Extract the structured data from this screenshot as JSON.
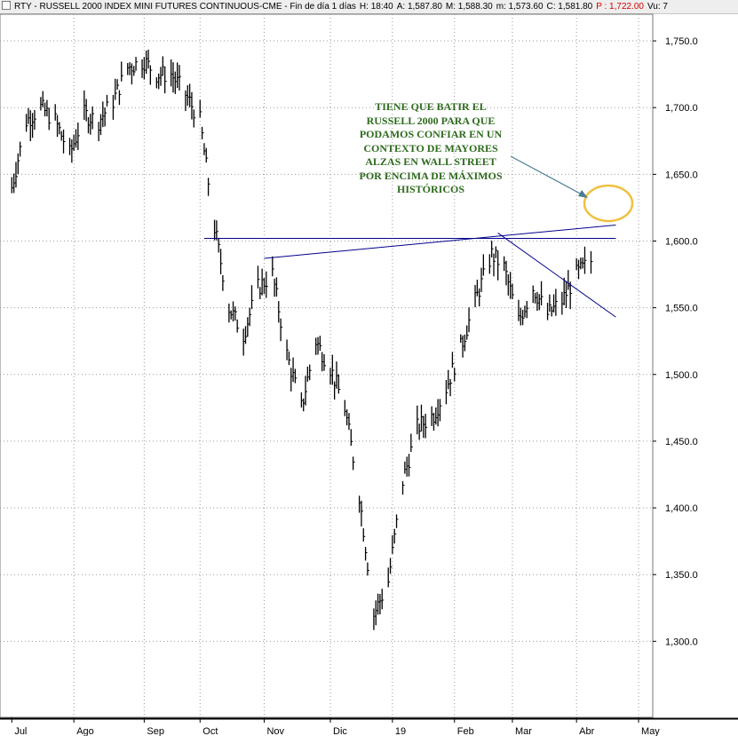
{
  "header": {
    "symbol": "RTY - RUSSELL 2000 INDEX MINI FUTURES CONTINUOUS-CME - Fin de día 1 días",
    "high": "H: 18:40",
    "open": "A: 1,587.80",
    "max": "M: 1,588.30",
    "min": "m: 1,573.60",
    "close": "C: 1,581.80",
    "p": "P : 1,722.00",
    "vol": "Vu: 7"
  },
  "annotation": {
    "lines": [
      "TIENE QUE BATIR EL",
      "RUSSELL 2000 PARA QUE",
      "PODAMOS CONFIAR EN UN",
      "CONTEXTO DE MAYORES",
      "ALZAS EN WALL STREET",
      "POR ENCIMA DE MÁXIMOS",
      "HISTÓRICOS"
    ],
    "color": "#2e6b1d"
  },
  "chart_data": {
    "type": "line",
    "title": "",
    "xlabel": "",
    "ylabel": "",
    "ylim": [
      1243,
      1770
    ],
    "y_ticks": [
      1300,
      1350,
      1400,
      1450,
      1500,
      1550,
      1600,
      1650,
      1700,
      1750
    ],
    "y_tick_labels": [
      "1,300.0",
      "1,350.0",
      "1,400.0",
      "1,450.0",
      "1,500.0",
      "1,550.0",
      "1,600.0",
      "1,650.0",
      "1,700.0",
      "1,750.0"
    ],
    "x_ticks": [
      "Jul",
      "Ago",
      "Sep",
      "Oct",
      "Nov",
      "Dic",
      "19",
      "Feb",
      "Mar",
      "Abr",
      "May"
    ],
    "grid": true,
    "colors": {
      "price": "#000000",
      "trendline": "#00008b",
      "circle": "#f0c040",
      "arrow": "#4a7d96",
      "grid": "#9a9a9a"
    },
    "series": [
      {
        "x": [
          "2018-07-02",
          "2018-07-09",
          "2018-07-16",
          "2018-07-23",
          "2018-07-30",
          "2018-08-06",
          "2018-08-13",
          "2018-08-20",
          "2018-08-27",
          "2018-09-04",
          "2018-09-10",
          "2018-09-17",
          "2018-09-24",
          "2018-10-01",
          "2018-10-08",
          "2018-10-15",
          "2018-10-22",
          "2018-10-29",
          "2018-11-05",
          "2018-11-12",
          "2018-11-19",
          "2018-11-26",
          "2018-12-03",
          "2018-12-10",
          "2018-12-17",
          "2018-12-24",
          "2018-12-31",
          "2019-01-07",
          "2019-01-14",
          "2019-01-22",
          "2019-01-28",
          "2019-02-04",
          "2019-02-11",
          "2019-02-19",
          "2019-02-25",
          "2019-03-04",
          "2019-03-11",
          "2019-03-18",
          "2019-03-25",
          "2019-04-01",
          "2019-04-08"
        ],
        "values": [
          1640,
          1690,
          1700,
          1690,
          1665,
          1695,
          1690,
          1705,
          1730,
          1735,
          1725,
          1725,
          1710,
          1690,
          1610,
          1550,
          1530,
          1565,
          1575,
          1515,
          1475,
          1525,
          1505,
          1475,
          1410,
          1320,
          1345,
          1420,
          1460,
          1470,
          1490,
          1520,
          1555,
          1590,
          1580,
          1540,
          1565,
          1545,
          1555,
          1575,
          1585
        ]
      }
    ],
    "lines": [
      {
        "x": [
          "2018-10-03",
          "2019-04-20"
        ],
        "y": [
          1602,
          1602
        ]
      },
      {
        "x": [
          "2018-11-01",
          "2019-04-20"
        ],
        "y": [
          1587,
          1612
        ]
      },
      {
        "x": [
          "2019-02-22",
          "2019-04-20"
        ],
        "y": [
          1606,
          1543
        ]
      }
    ]
  }
}
